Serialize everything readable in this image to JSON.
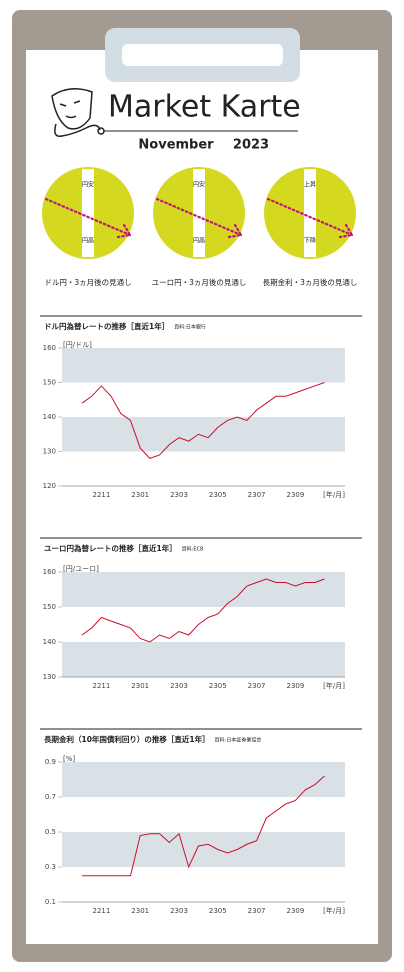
{
  "header": {
    "title": "Market Karte",
    "month": "November",
    "year": "2023"
  },
  "outlook": [
    {
      "top": "円安",
      "bottom": "円高",
      "caption": "ドル円・3ヵ月後の見通し"
    },
    {
      "top": "円安",
      "bottom": "円高",
      "caption": "ユーロ円・3ヵ月後の見通し"
    },
    {
      "top": "上昇",
      "bottom": "下降",
      "caption": "長期金利・3ヵ月後の見通し"
    }
  ],
  "chart_data": [
    {
      "type": "line",
      "title": "ドル円為替レートの推移［直近1年］",
      "source": "資料:日本銀行",
      "y_label": "[円/ドル]",
      "x_label": "[年/月]",
      "categories": [
        null,
        null,
        "2211",
        null,
        null,
        null,
        "2301",
        null,
        null,
        null,
        "2303",
        null,
        null,
        null,
        "2305",
        null,
        null,
        null,
        "2307",
        null,
        null,
        null,
        "2309",
        null,
        null,
        null
      ],
      "values": [
        144,
        146,
        149,
        146,
        141,
        139,
        131,
        128,
        129,
        132,
        134,
        133,
        135,
        134,
        137,
        139,
        140,
        139,
        142,
        144,
        146,
        146,
        147,
        148,
        149,
        150
      ],
      "color": "#c8102e",
      "ylim": [
        120,
        160
      ],
      "yticks": [
        120,
        130,
        140,
        150,
        160
      ]
    },
    {
      "type": "line",
      "title": "ユーロ円為替レートの推移［直近1年］",
      "source": "資料:ECB",
      "y_label": "[円/ユーロ]",
      "x_label": "[年/月]",
      "categories": [
        null,
        null,
        "2211",
        null,
        null,
        null,
        "2301",
        null,
        null,
        null,
        "2303",
        null,
        null,
        null,
        "2305",
        null,
        null,
        null,
        "2307",
        null,
        null,
        null,
        "2309",
        null,
        null,
        null
      ],
      "values": [
        142,
        144,
        147,
        146,
        145,
        144,
        141,
        140,
        142,
        141,
        143,
        142,
        145,
        147,
        148,
        151,
        153,
        156,
        157,
        158,
        157,
        157,
        156,
        157,
        157,
        158
      ],
      "color": "#c8102e",
      "ylim": [
        130,
        160
      ],
      "yticks": [
        130,
        140,
        150,
        160
      ]
    },
    {
      "type": "line",
      "title": "長期金利（10年国債利回り）の推移［直近1年］",
      "source": "資料:日本証券業協会",
      "y_label": "[%]",
      "x_label": "[年/月]",
      "categories": [
        null,
        null,
        "2211",
        null,
        null,
        null,
        "2301",
        null,
        null,
        null,
        "2303",
        null,
        null,
        null,
        "2305",
        null,
        null,
        null,
        "2307",
        null,
        null,
        null,
        "2309",
        null,
        null,
        null
      ],
      "values": [
        0.25,
        0.25,
        0.25,
        0.25,
        0.25,
        0.25,
        0.48,
        0.49,
        0.49,
        0.44,
        0.49,
        0.3,
        0.42,
        0.43,
        0.4,
        0.38,
        0.4,
        0.43,
        0.45,
        0.58,
        0.62,
        0.66,
        0.68,
        0.74,
        0.77,
        0.82
      ],
      "color": "#c8102e",
      "ylim": [
        0.1,
        0.9
      ],
      "yticks": [
        0.1,
        0.3,
        0.5,
        0.7,
        0.9
      ]
    }
  ]
}
